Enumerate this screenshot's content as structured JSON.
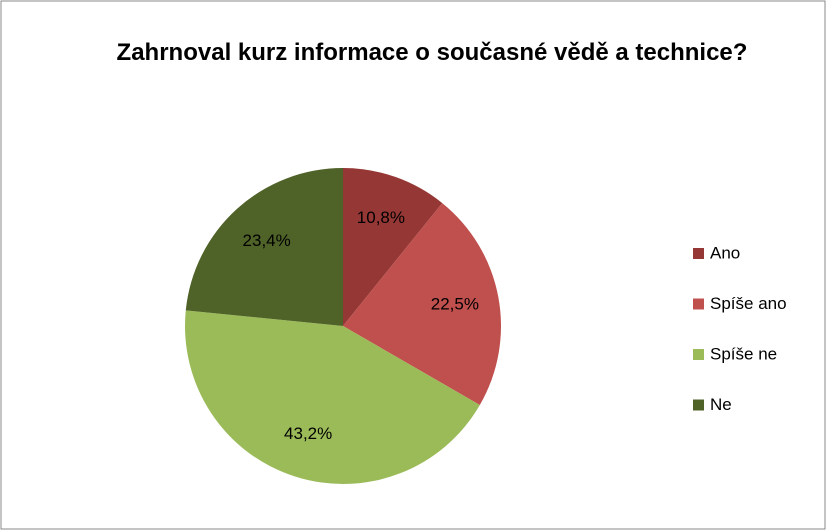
{
  "chart_data": {
    "type": "pie",
    "title": "Zahrnoval kurz informace o současné vědě a technice?",
    "categories": [
      "Ano",
      "Spíše ano",
      "Spíše ne",
      "Ne"
    ],
    "values": [
      10.8,
      22.5,
      43.2,
      23.4
    ],
    "value_labels": [
      "10,8%",
      "22,5%",
      "43,2%",
      "23,4%"
    ],
    "colors": [
      "#953735",
      "#c0504d",
      "#9bbb59",
      "#4f6228"
    ],
    "legend": "right"
  }
}
